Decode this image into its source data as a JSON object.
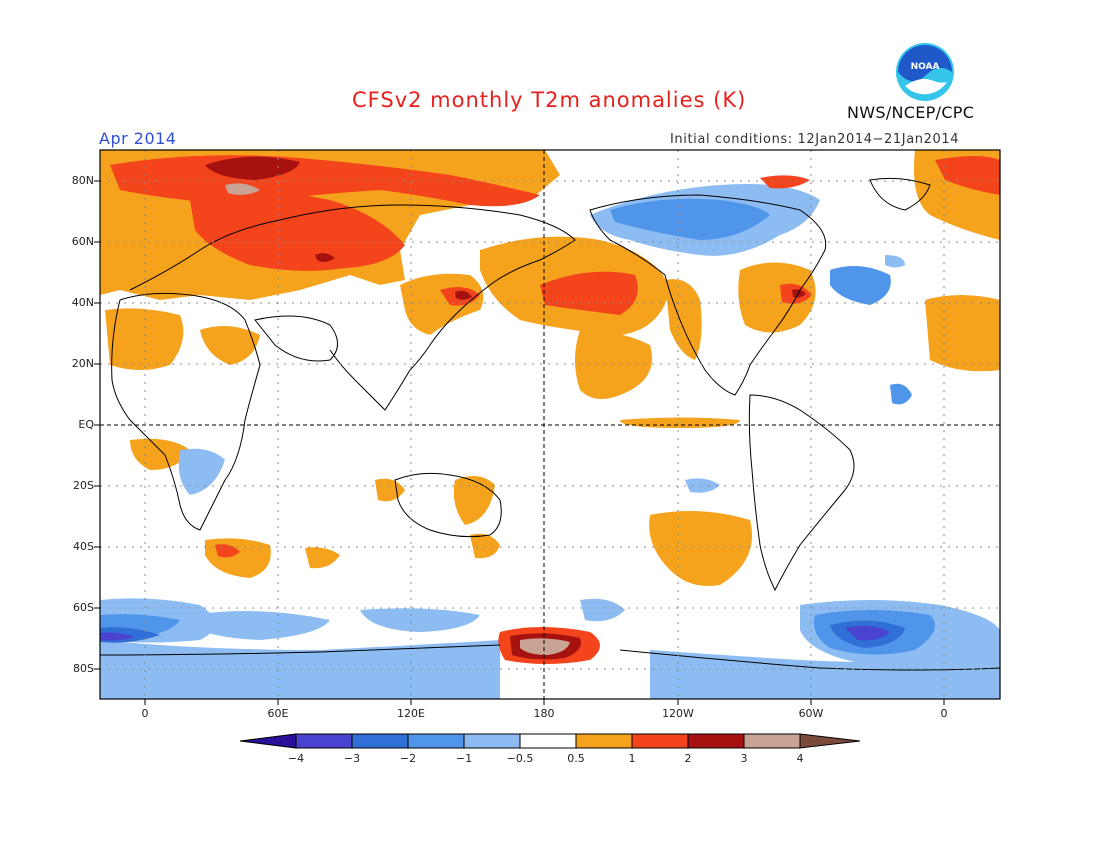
{
  "header": {
    "title": "CFSv2 monthly T2m anomalies (K)",
    "period": "Apr 2014",
    "initial_conditions": "Initial conditions: 12Jan2014−21Jan2014",
    "agency": "NWS/NCEP/CPC",
    "logo_text": "NOAA"
  },
  "axes": {
    "y_labels": [
      "80N",
      "60N",
      "40N",
      "20N",
      "EQ",
      "20S",
      "40S",
      "60S",
      "80S"
    ],
    "x_labels": [
      "0",
      "60E",
      "120E",
      "180",
      "120W",
      "60W",
      "0"
    ]
  },
  "colorbar": {
    "labels": [
      "−4",
      "−3",
      "−2",
      "−1",
      "−0.5",
      "0.5",
      "1",
      "2",
      "3",
      "4"
    ],
    "colors": [
      "#2a0f9a",
      "#4a43cf",
      "#2f6fd6",
      "#4f95ea",
      "#8cbcf2",
      "#ffffff",
      "#f5a21c",
      "#f3441c",
      "#a6120f",
      "#c9a393",
      "#7a4b3a"
    ]
  },
  "colors": {
    "title": "#e8201c",
    "period": "#2f4fd8",
    "logo_blue": "#1f58c9",
    "logo_cyan": "#35c4ea"
  }
}
